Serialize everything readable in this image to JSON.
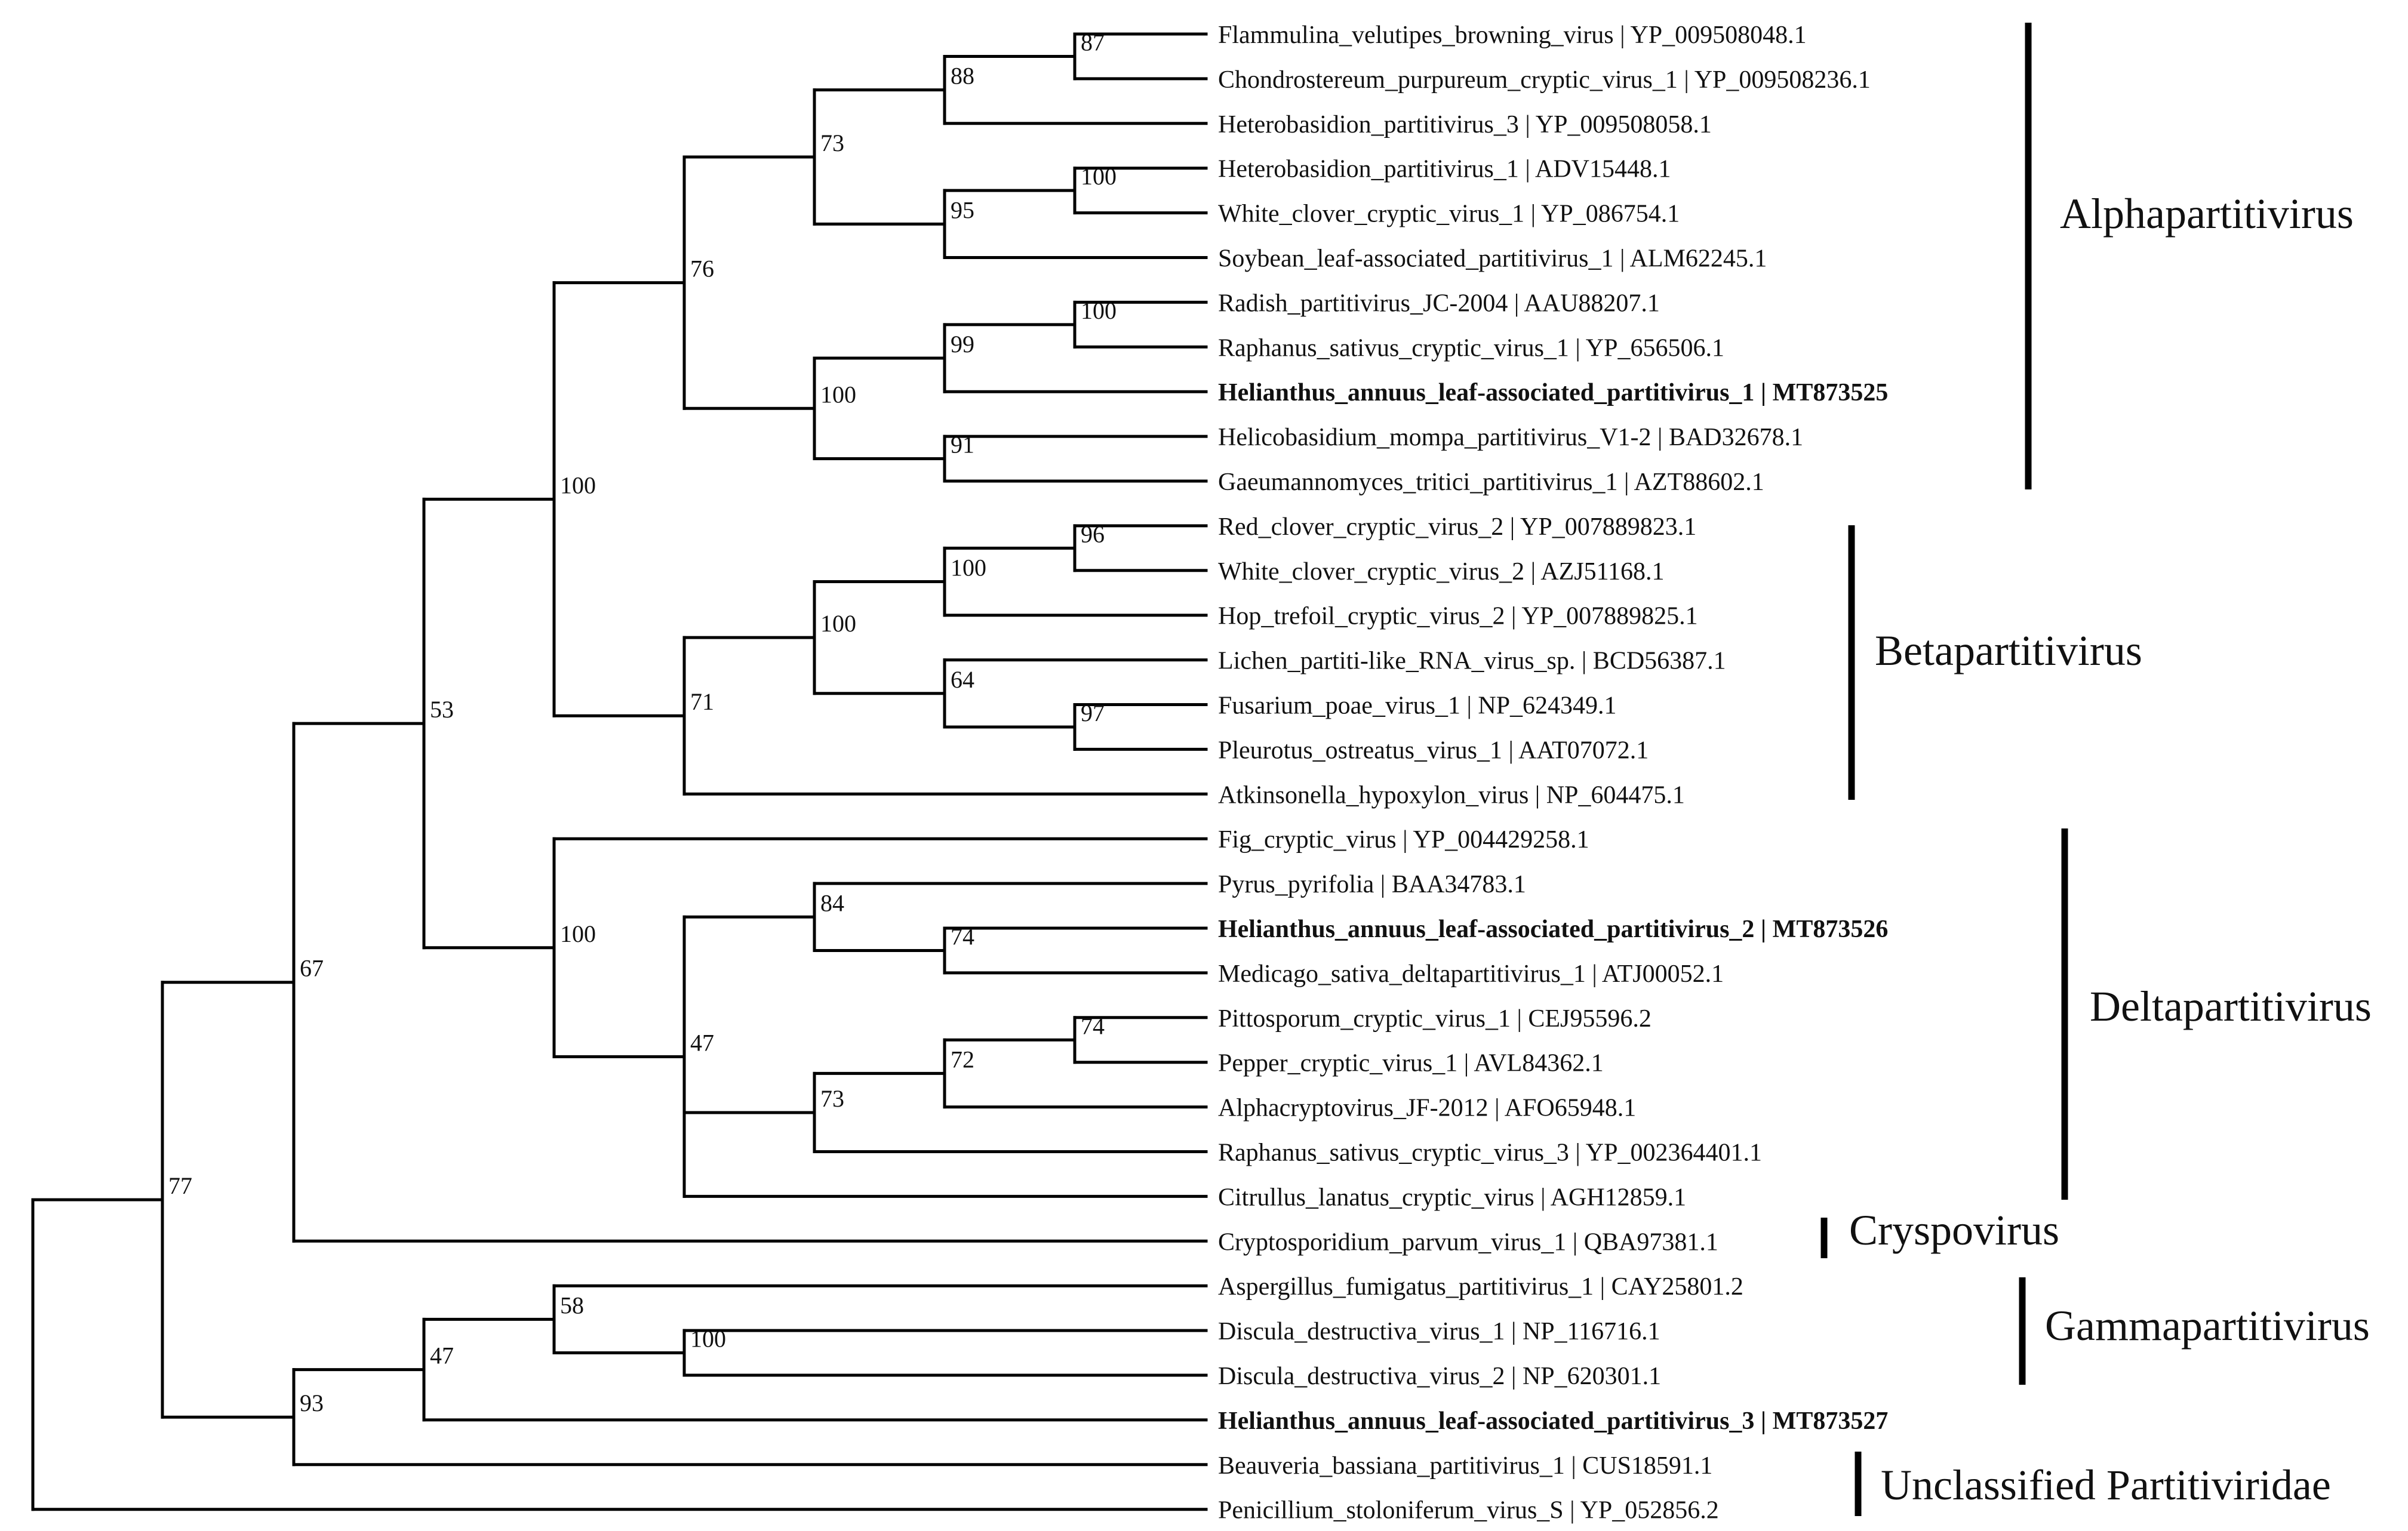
{
  "tree": {
    "name": "root",
    "children": [
      {
        "name": "n77",
        "support": "77",
        "children": [
          {
            "name": "n67",
            "support": "67",
            "children": [
              {
                "name": "n53",
                "support": "53",
                "children": [
                  {
                    "name": "n100a",
                    "support": "100",
                    "children": [
                      {
                        "name": "n76",
                        "support": "76",
                        "children": [
                          {
                            "name": "n73a",
                            "support": "73",
                            "children": [
                              {
                                "name": "n88",
                                "support": "88",
                                "children": [
                                  {
                                    "name": "n87",
                                    "support": "87",
                                    "children": [
                                      {
                                        "leaf": "Flammulina_velutipes_browning_virus | YP_009508048.1"
                                      },
                                      {
                                        "leaf": "Chondrostereum_purpureum_cryptic_virus_1 | YP_009508236.1"
                                      }
                                    ]
                                  },
                                  {
                                    "leaf": "Heterobasidion_partitivirus_3 | YP_009508058.1"
                                  }
                                ]
                              },
                              {
                                "name": "n95",
                                "support": "95",
                                "children": [
                                  {
                                    "name": "n100b",
                                    "support": "100",
                                    "children": [
                                      {
                                        "leaf": "Heterobasidion_partitivirus_1 | ADV15448.1"
                                      },
                                      {
                                        "leaf": "White_clover_cryptic_virus_1 | YP_086754.1"
                                      }
                                    ]
                                  },
                                  {
                                    "leaf": "Soybean_leaf-associated_partitivirus_1 | ALM62245.1"
                                  }
                                ]
                              }
                            ]
                          },
                          {
                            "name": "n100c",
                            "support": "100",
                            "children": [
                              {
                                "name": "n99",
                                "support": "99",
                                "children": [
                                  {
                                    "name": "n100d",
                                    "support": "100",
                                    "children": [
                                      {
                                        "leaf": "Radish_partitivirus_JC-2004 | AAU88207.1"
                                      },
                                      {
                                        "leaf": "Raphanus_sativus_cryptic_virus_1 | YP_656506.1"
                                      }
                                    ]
                                  },
                                  {
                                    "leaf": "Helianthus_annuus_leaf-associated_partitivirus_1 | MT873525",
                                    "bold": true
                                  }
                                ]
                              },
                              {
                                "name": "n91",
                                "support": "91",
                                "children": [
                                  {
                                    "leaf": "Helicobasidium_mompa_partitivirus_V1-2 | BAD32678.1"
                                  },
                                  {
                                    "leaf": "Gaeumannomyces_tritici_partitivirus_1 | AZT88602.1"
                                  }
                                ]
                              }
                            ]
                          }
                        ]
                      },
                      {
                        "name": "n71",
                        "support": "71",
                        "children": [
                          {
                            "name": "n100e",
                            "support": "100",
                            "children": [
                              {
                                "name": "n100f",
                                "support": "100",
                                "children": [
                                  {
                                    "name": "n96",
                                    "support": "96",
                                    "children": [
                                      {
                                        "leaf": "Red_clover_cryptic_virus_2 | YP_007889823.1"
                                      },
                                      {
                                        "leaf": "White_clover_cryptic_virus_2 | AZJ51168.1"
                                      }
                                    ]
                                  },
                                  {
                                    "leaf": "Hop_trefoil_cryptic_virus_2 | YP_007889825.1"
                                  }
                                ]
                              },
                              {
                                "name": "n64",
                                "support": "64",
                                "children": [
                                  {
                                    "leaf": "Lichen_partiti-like_RNA_virus_sp. | BCD56387.1"
                                  },
                                  {
                                    "name": "n97",
                                    "support": "97",
                                    "children": [
                                      {
                                        "leaf": "Fusarium_poae_virus_1 | NP_624349.1"
                                      },
                                      {
                                        "leaf": "Pleurotus_ostreatus_virus_1 | AAT07072.1"
                                      }
                                    ]
                                  }
                                ]
                              }
                            ]
                          },
                          {
                            "leaf": "Atkinsonella_hypoxylon_virus | NP_604475.1"
                          }
                        ]
                      }
                    ]
                  },
                  {
                    "name": "n100g",
                    "support": "100",
                    "children": [
                      {
                        "leaf": "Fig_cryptic_virus | YP_004429258.1"
                      },
                      {
                        "name": "n47a",
                        "support": "47",
                        "children": [
                          {
                            "name": "n84",
                            "support": "84",
                            "children": [
                              {
                                "leaf": "Pyrus_pyrifolia | BAA34783.1"
                              },
                              {
                                "name": "n74a",
                                "support": "74",
                                "children": [
                                  {
                                    "leaf": "Helianthus_annuus_leaf-associated_partitivirus_2 | MT873526",
                                    "bold": true
                                  },
                                  {
                                    "leaf": "Medicago_sativa_deltapartitivirus_1 | ATJ00052.1"
                                  }
                                ]
                              }
                            ]
                          },
                          {
                            "name": "n73b",
                            "support": "73",
                            "children": [
                              {
                                "name": "n72",
                                "support": "72",
                                "children": [
                                  {
                                    "name": "n74b",
                                    "support": "74",
                                    "children": [
                                      {
                                        "leaf": "Pittosporum_cryptic_virus_1 | CEJ95596.2"
                                      },
                                      {
                                        "leaf": "Pepper_cryptic_virus_1 | AVL84362.1"
                                      }
                                    ]
                                  },
                                  {
                                    "leaf": "Alphacryptovirus_JF-2012 | AFO65948.1"
                                  }
                                ]
                              },
                              {
                                "leaf": "Raphanus_sativus_cryptic_virus_3 | YP_002364401.1"
                              }
                            ]
                          },
                          {
                            "leaf": "Citrullus_lanatus_cryptic_virus | AGH12859.1"
                          }
                        ]
                      }
                    ]
                  }
                ]
              },
              {
                "leaf": "Cryptosporidium_parvum_virus_1 | QBA97381.1"
              }
            ]
          },
          {
            "name": "n93",
            "support": "93",
            "children": [
              {
                "name": "n47b",
                "support": "47",
                "children": [
                  {
                    "name": "n58",
                    "support": "58",
                    "children": [
                      {
                        "leaf": "Aspergillus_fumigatus_partitivirus_1 | CAY25801.2"
                      },
                      {
                        "name": "n100h",
                        "support": "100",
                        "children": [
                          {
                            "leaf": "Discula_destructiva_virus_1 | NP_116716.1"
                          },
                          {
                            "leaf": "Discula_destructiva_virus_2 | NP_620301.1"
                          }
                        ]
                      }
                    ]
                  },
                  {
                    "leaf": "Helianthus_annuus_leaf-associated_partitivirus_3 | MT873527",
                    "bold": true
                  }
                ]
              },
              {
                "leaf": "Beauveria_bassiana_partitivirus_1 | CUS18591.1"
              }
            ]
          }
        ]
      },
      {
        "leaf": "Penicillium_stoloniferum_virus_S | YP_052856.2"
      }
    ]
  },
  "clades": [
    {
      "label": "Alphapartitivirus",
      "from_leaf": 0,
      "to_leaf": 10
    },
    {
      "label": "Betapartitivirus",
      "from_leaf": 11,
      "to_leaf": 17
    },
    {
      "label": "Deltapartitivirus",
      "from_leaf": 18,
      "to_leaf": 26
    },
    {
      "label": "Cryspovirus",
      "from_leaf": 27,
      "to_leaf": 27
    },
    {
      "label": "Gammapartitivirus",
      "from_leaf": 28,
      "to_leaf": 30
    },
    {
      "label": "Unclassified Partitiviridae",
      "from_leaf": 32,
      "to_leaf": 33
    }
  ]
}
